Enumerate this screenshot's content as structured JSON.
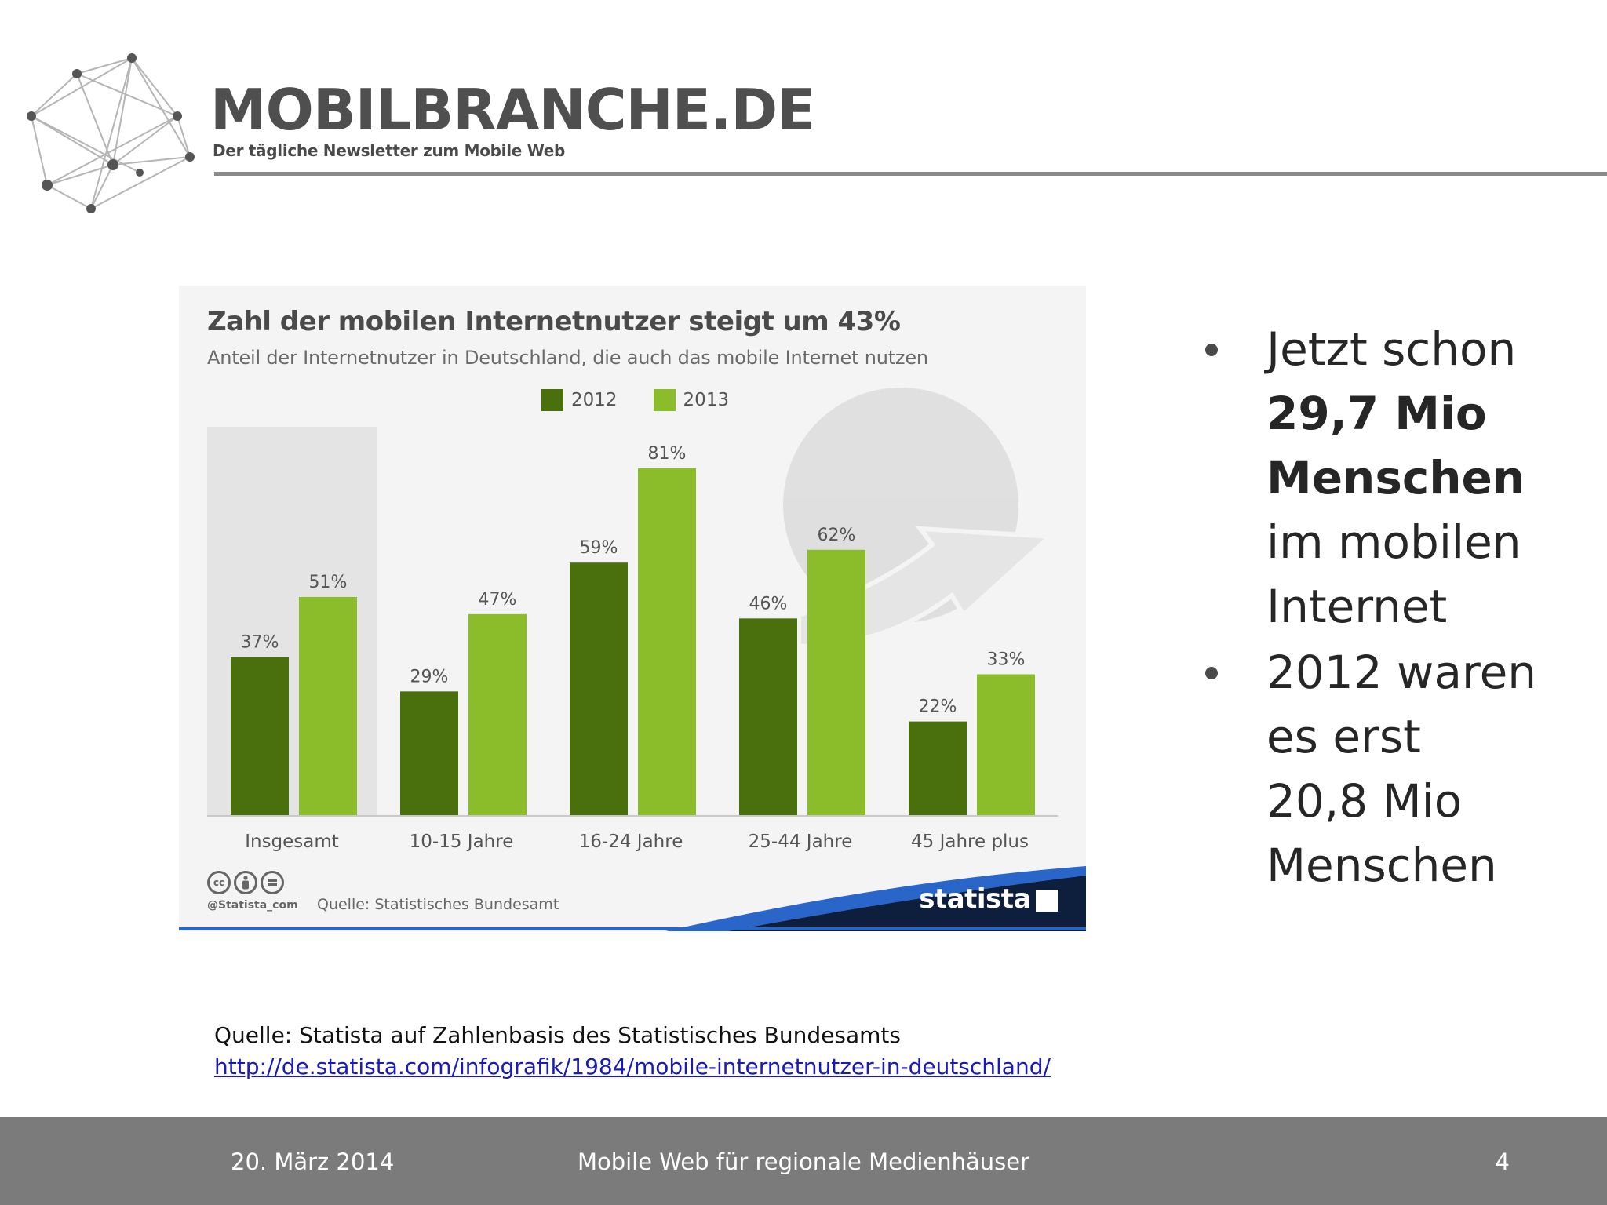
{
  "header": {
    "brand": "MOBILBRANCHE.DE",
    "tagline": "Der tägliche Newsletter zum Mobile Web"
  },
  "chart_data": {
    "type": "bar",
    "title": "Zahl der mobilen Internetnutzer steigt um 43%",
    "subtitle": "Anteil der Internetnutzer in Deutschland, die auch das mobile Internet nutzen",
    "categories": [
      "Insgesamt",
      "10-15 Jahre",
      "16-24 Jahre",
      "25-44 Jahre",
      "45 Jahre plus"
    ],
    "series": [
      {
        "name": "2012",
        "values": [
          37,
          29,
          59,
          46,
          22
        ],
        "color": "#4a6f0d"
      },
      {
        "name": "2013",
        "values": [
          51,
          47,
          81,
          62,
          33
        ],
        "color": "#8bbd2a"
      }
    ],
    "value_suffix": "%",
    "ylim": [
      0,
      87
    ],
    "xlabel": "",
    "ylabel": "",
    "grid": false,
    "legend_position": "top-center",
    "highlight_category": "Insgesamt",
    "handle": "@Statista_com",
    "source": "Quelle: Statistisches Bundesamt",
    "brand": "statista"
  },
  "bullets": [
    {
      "lines": [
        "Jetzt schon"
      ],
      "bold": [
        "29,7 Mio",
        "Menschen"
      ],
      "after": [
        "im mobilen",
        "Internet"
      ]
    },
    {
      "lines": [
        "2012 waren",
        "es erst",
        "20,8 Mio",
        "Menschen"
      ],
      "bold": [],
      "after": []
    }
  ],
  "source_note": {
    "text": "Quelle: Statista auf Zahlenbasis des Statistisches Bundesamts",
    "link": "http://de.statista.com/infografik/1984/mobile-internetnutzer-in-deutschland/"
  },
  "footer": {
    "date": "20. März 2014",
    "title": "Mobile Web für regionale Medienhäuser",
    "page": "4"
  },
  "colors": {
    "footer_bg": "#7b7b7b",
    "statista_navy": "#0d1f3c",
    "statista_blue": "#2a66c9"
  }
}
